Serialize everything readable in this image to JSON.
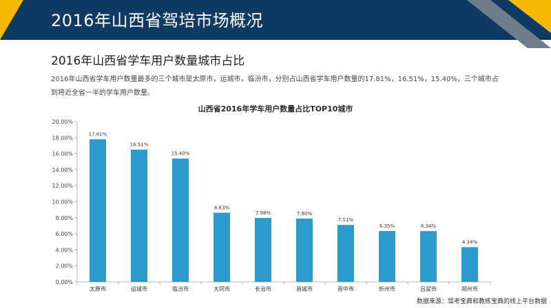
{
  "header": {
    "title": "2016年山西省驾培市场概况"
  },
  "section": {
    "subtitle": "2016年山西省学车用户数量城市占比",
    "description": "2016年山西省学车用户数量最多的三个城市是太原市，运城市，临汾市，分别占山西省学车用户数量的17.81%，16.51%，15.40%，三个城市占到将近全省一半的学车用户数量。"
  },
  "footer": {
    "source": "数据来源：驾考宝典和教练宝典的线上平台数据"
  },
  "colors": {
    "header_bg": "#0f3a64",
    "accent_yellow": "#f6b800",
    "accent_gray": "#6f7e8a",
    "bar": "#2e9bcf"
  },
  "chart_data": {
    "type": "bar",
    "title": "山西省2016年学车用户数量占比TOP10城市",
    "categories": [
      "太原市",
      "运城市",
      "临汾市",
      "大同市",
      "长治市",
      "晋城市",
      "晋中市",
      "忻州市",
      "吕梁市",
      "朔州市"
    ],
    "values": [
      17.81,
      16.51,
      15.4,
      8.63,
      7.98,
      7.9,
      7.11,
      6.35,
      6.34,
      4.34
    ],
    "value_labels": [
      "17.81%",
      "16.51%",
      "15.40%",
      "8.63%",
      "7.98%",
      "7.90%",
      "7.11%",
      "6.35%",
      "6.34%",
      "4.34%"
    ],
    "ylim": [
      0,
      20
    ],
    "yticks": [
      "0.00%",
      "2.00%",
      "4.00%",
      "6.00%",
      "8.00%",
      "10.00%",
      "12.00%",
      "14.00%",
      "16.00%",
      "18.00%",
      "20.00%"
    ],
    "grid": false,
    "legend": "none"
  }
}
